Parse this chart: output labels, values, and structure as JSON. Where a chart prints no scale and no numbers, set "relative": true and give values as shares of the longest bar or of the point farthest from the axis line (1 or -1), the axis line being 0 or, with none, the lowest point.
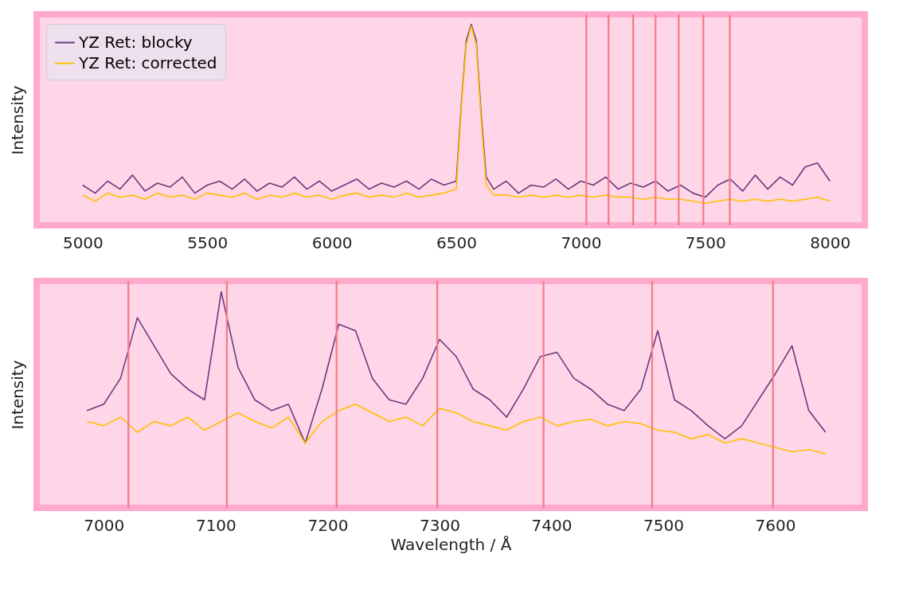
{
  "chart_data": [
    {
      "type": "line",
      "relative": true,
      "ylabel": "Intensity",
      "xlim": [
        4815,
        8140
      ],
      "xticks": [
        5000,
        5500,
        6000,
        6500,
        7000,
        7500,
        8000
      ],
      "legend": "top left",
      "grid": false,
      "series": [
        {
          "name": "YZ Ret: blocky",
          "color": "#6b3a7d",
          "x": [
            5000,
            5050,
            5100,
            5150,
            5200,
            5250,
            5300,
            5350,
            5400,
            5450,
            5500,
            5550,
            5600,
            5650,
            5700,
            5750,
            5800,
            5850,
            5900,
            5950,
            6000,
            6050,
            6100,
            6150,
            6200,
            6250,
            6300,
            6350,
            6400,
            6450,
            6500,
            6520,
            6540,
            6560,
            6580,
            6600,
            6620,
            6650,
            6700,
            6750,
            6800,
            6850,
            6900,
            6950,
            7000,
            7050,
            7100,
            7150,
            7200,
            7250,
            7300,
            7350,
            7400,
            7450,
            7500,
            7550,
            7600,
            7650,
            7700,
            7750,
            7800,
            7850,
            7900,
            7950,
            8000
          ],
          "values": [
            0.2,
            0.16,
            0.22,
            0.18,
            0.25,
            0.17,
            0.21,
            0.19,
            0.24,
            0.16,
            0.2,
            0.22,
            0.18,
            0.23,
            0.17,
            0.21,
            0.19,
            0.24,
            0.18,
            0.22,
            0.17,
            0.2,
            0.23,
            0.18,
            0.21,
            0.19,
            0.22,
            0.18,
            0.23,
            0.2,
            0.22,
            0.6,
            0.92,
            1.0,
            0.92,
            0.55,
            0.24,
            0.18,
            0.22,
            0.16,
            0.2,
            0.19,
            0.23,
            0.18,
            0.22,
            0.2,
            0.24,
            0.18,
            0.21,
            0.19,
            0.22,
            0.17,
            0.2,
            0.16,
            0.14,
            0.2,
            0.23,
            0.17,
            0.25,
            0.18,
            0.24,
            0.2,
            0.29,
            0.31,
            0.22
          ]
        },
        {
          "name": "YZ Ret: corrected",
          "color": "#ffc000",
          "x": [
            5000,
            5050,
            5100,
            5150,
            5200,
            5250,
            5300,
            5350,
            5400,
            5450,
            5500,
            5550,
            5600,
            5650,
            5700,
            5750,
            5800,
            5850,
            5900,
            5950,
            6000,
            6050,
            6100,
            6150,
            6200,
            6250,
            6300,
            6350,
            6400,
            6450,
            6500,
            6520,
            6540,
            6560,
            6580,
            6600,
            6620,
            6650,
            6700,
            6750,
            6800,
            6850,
            6900,
            6950,
            7000,
            7050,
            7100,
            7150,
            7200,
            7250,
            7300,
            7350,
            7400,
            7450,
            7500,
            7550,
            7600,
            7650,
            7700,
            7750,
            7800,
            7850,
            7900,
            7950,
            8000
          ],
          "values": [
            0.15,
            0.12,
            0.16,
            0.14,
            0.15,
            0.13,
            0.16,
            0.14,
            0.15,
            0.13,
            0.16,
            0.15,
            0.14,
            0.16,
            0.13,
            0.15,
            0.14,
            0.16,
            0.14,
            0.15,
            0.13,
            0.15,
            0.16,
            0.14,
            0.15,
            0.14,
            0.16,
            0.14,
            0.15,
            0.16,
            0.18,
            0.58,
            0.9,
            0.99,
            0.9,
            0.52,
            0.2,
            0.15,
            0.15,
            0.14,
            0.15,
            0.14,
            0.15,
            0.14,
            0.15,
            0.14,
            0.15,
            0.14,
            0.14,
            0.13,
            0.14,
            0.13,
            0.13,
            0.12,
            0.11,
            0.12,
            0.13,
            0.12,
            0.13,
            0.12,
            0.13,
            0.12,
            0.13,
            0.14,
            0.12
          ]
        }
      ],
      "ref_lines": [
        {
          "axis": "x",
          "value": 7022,
          "color": "#f47a86"
        },
        {
          "axis": "x",
          "value": 7111,
          "color": "#f47a86"
        },
        {
          "axis": "x",
          "value": 7210,
          "color": "#f47a86"
        },
        {
          "axis": "x",
          "value": 7300,
          "color": "#f47a86"
        },
        {
          "axis": "x",
          "value": 7393,
          "color": "#f47a86"
        },
        {
          "axis": "x",
          "value": 7492,
          "color": "#f47a86"
        },
        {
          "axis": "x",
          "value": 7598,
          "color": "#f47a86"
        }
      ]
    },
    {
      "type": "line",
      "relative": true,
      "ylabel": "Intensity",
      "xlabel": "Wavelength / Å",
      "xlim": [
        6940,
        7680
      ],
      "xticks": [
        7000,
        7100,
        7200,
        7300,
        7400,
        7500,
        7600
      ],
      "grid": false,
      "series": [
        {
          "color": "#6b3a7d",
          "x": [
            6985,
            7000,
            7015,
            7030,
            7045,
            7060,
            7075,
            7090,
            7105,
            7120,
            7135,
            7150,
            7165,
            7180,
            7195,
            7210,
            7225,
            7240,
            7255,
            7270,
            7285,
            7300,
            7315,
            7330,
            7345,
            7360,
            7375,
            7390,
            7405,
            7420,
            7435,
            7450,
            7465,
            7480,
            7495,
            7510,
            7525,
            7540,
            7555,
            7570,
            7585,
            7600,
            7615,
            7630,
            7645
          ],
          "values": [
            0.45,
            0.48,
            0.6,
            0.88,
            0.75,
            0.62,
            0.55,
            0.5,
            1.0,
            0.65,
            0.5,
            0.45,
            0.48,
            0.3,
            0.55,
            0.85,
            0.82,
            0.6,
            0.5,
            0.48,
            0.6,
            0.78,
            0.7,
            0.55,
            0.5,
            0.42,
            0.55,
            0.7,
            0.72,
            0.6,
            0.55,
            0.48,
            0.45,
            0.55,
            0.82,
            0.5,
            0.45,
            0.38,
            0.32,
            0.38,
            0.5,
            0.62,
            0.75,
            0.45,
            0.35
          ]
        },
        {
          "color": "#ffc000",
          "x": [
            6985,
            7000,
            7015,
            7030,
            7045,
            7060,
            7075,
            7090,
            7105,
            7120,
            7135,
            7150,
            7165,
            7180,
            7195,
            7210,
            7225,
            7240,
            7255,
            7270,
            7285,
            7300,
            7315,
            7330,
            7345,
            7360,
            7375,
            7390,
            7405,
            7420,
            7435,
            7450,
            7465,
            7480,
            7495,
            7510,
            7525,
            7540,
            7555,
            7570,
            7585,
            7600,
            7615,
            7630,
            7645
          ],
          "values": [
            0.4,
            0.38,
            0.42,
            0.35,
            0.4,
            0.38,
            0.42,
            0.36,
            0.4,
            0.44,
            0.4,
            0.37,
            0.42,
            0.3,
            0.4,
            0.45,
            0.48,
            0.44,
            0.4,
            0.42,
            0.38,
            0.46,
            0.44,
            0.4,
            0.38,
            0.36,
            0.4,
            0.42,
            0.38,
            0.4,
            0.41,
            0.38,
            0.4,
            0.39,
            0.36,
            0.35,
            0.32,
            0.34,
            0.3,
            0.32,
            0.3,
            0.28,
            0.26,
            0.27,
            0.25
          ]
        }
      ],
      "ref_lines": [
        {
          "axis": "x",
          "value": 7022,
          "color": "#f47a86"
        },
        {
          "axis": "x",
          "value": 7110,
          "color": "#f47a86"
        },
        {
          "axis": "x",
          "value": 7208,
          "color": "#f47a86"
        },
        {
          "axis": "x",
          "value": 7298,
          "color": "#f47a86"
        },
        {
          "axis": "x",
          "value": 7393,
          "color": "#f47a86"
        },
        {
          "axis": "x",
          "value": 7490,
          "color": "#f47a86"
        },
        {
          "axis": "x",
          "value": 7598,
          "color": "#f47a86"
        }
      ]
    }
  ]
}
